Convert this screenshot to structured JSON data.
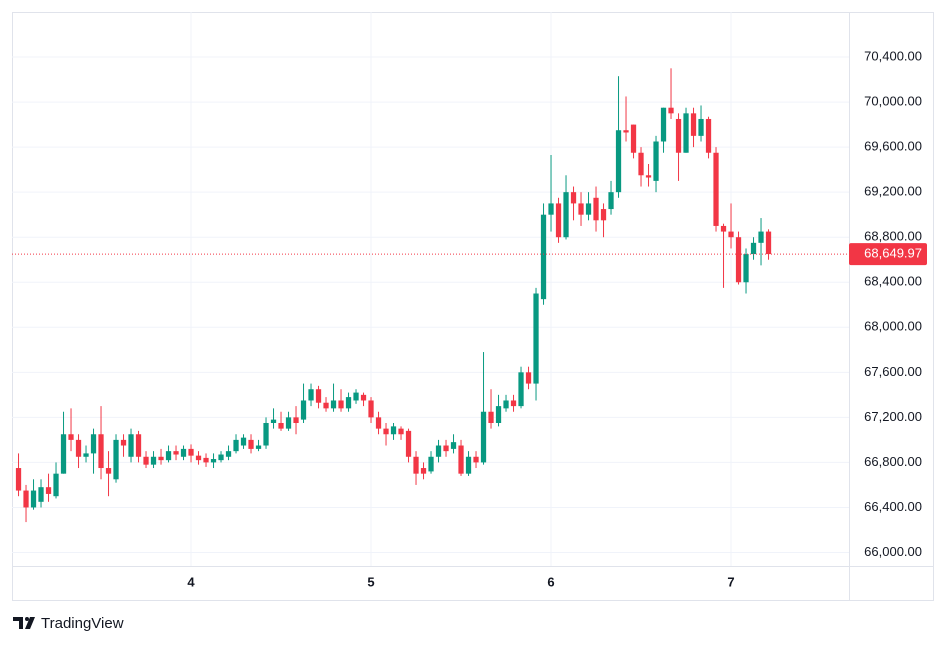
{
  "chart_data": {
    "type": "candlestick",
    "open": [
      66750,
      66550,
      66400,
      66450,
      66580,
      66500,
      66700,
      67050,
      67000,
      66850,
      66880,
      67050,
      66750,
      66650,
      67000,
      66850,
      67050,
      66850,
      66780,
      66850,
      66820,
      66900,
      66850,
      66920,
      66860,
      66840,
      66800,
      66820,
      66850,
      66900,
      66950,
      67000,
      66920,
      66950,
      67150,
      67150,
      67100,
      67200,
      67180,
      67350,
      67450,
      67330,
      67280,
      67350,
      67280,
      67350,
      67400,
      67350,
      67200,
      67100,
      67050,
      67100,
      67080,
      66850,
      66750,
      66720,
      66850,
      66950,
      66920,
      66950,
      66700,
      66850,
      66800,
      67250,
      67150,
      67280,
      67350,
      67300,
      67600,
      67500,
      68250,
      69000,
      69100,
      68800,
      69200,
      69100,
      69000,
      69150,
      69050,
      69050,
      69200,
      69750,
      69800,
      69550,
      69350,
      69300,
      69650,
      69950,
      69850,
      69550,
      69900,
      69700,
      69850,
      69550,
      68900,
      68850,
      68800,
      68400,
      68650,
      68750,
      68850
    ],
    "high": [
      66880,
      66600,
      66650,
      66650,
      66700,
      66800,
      67250,
      67280,
      67050,
      66950,
      67100,
      67300,
      66900,
      67050,
      67050,
      67100,
      67080,
      66900,
      66900,
      66920,
      66950,
      66950,
      66950,
      66960,
      66900,
      66880,
      66880,
      66900,
      66950,
      67050,
      67050,
      67050,
      67000,
      67200,
      67280,
      67250,
      67250,
      67300,
      67500,
      67500,
      67480,
      67380,
      67500,
      67450,
      67420,
      67450,
      67420,
      67380,
      67250,
      67150,
      67150,
      67120,
      67100,
      66900,
      66800,
      66900,
      67000,
      67000,
      67050,
      67000,
      66900,
      66900,
      67780,
      67450,
      67400,
      67400,
      67400,
      67650,
      67650,
      68350,
      69100,
      69530,
      69150,
      69350,
      69250,
      69200,
      69200,
      69250,
      69100,
      69300,
      70230,
      70050,
      69800,
      69600,
      69450,
      69700,
      69950,
      70300,
      69900,
      69950,
      69950,
      69970,
      69870,
      69600,
      68920,
      69100,
      68850,
      68700,
      68800,
      68970,
      68870
    ],
    "low": [
      66500,
      66270,
      66380,
      66400,
      66450,
      66480,
      66700,
      66900,
      66750,
      66800,
      66700,
      66650,
      66500,
      66620,
      66850,
      66800,
      66800,
      66750,
      66750,
      66780,
      66800,
      66820,
      66820,
      66800,
      66780,
      66760,
      66750,
      66800,
      66820,
      66880,
      66920,
      66880,
      66900,
      66920,
      67100,
      67080,
      67080,
      67050,
      67150,
      67300,
      67280,
      67250,
      67250,
      67250,
      67250,
      67320,
      67300,
      67150,
      67050,
      66950,
      67000,
      67000,
      66800,
      66600,
      66650,
      66700,
      66800,
      66850,
      66880,
      66680,
      66680,
      66750,
      66780,
      67100,
      67120,
      67250,
      67250,
      67280,
      67450,
      67350,
      68200,
      68850,
      68750,
      68780,
      68950,
      68900,
      68950,
      68850,
      68800,
      69000,
      69150,
      69650,
      69500,
      69250,
      69250,
      69200,
      69550,
      69850,
      69300,
      69550,
      69600,
      69650,
      69500,
      68850,
      68350,
      68700,
      68380,
      68300,
      68600,
      68550,
      68600
    ],
    "close": [
      66550,
      66400,
      66550,
      66580,
      66520,
      66700,
      67050,
      67000,
      66850,
      66880,
      67050,
      66750,
      66700,
      67000,
      66950,
      67050,
      66850,
      66780,
      66850,
      66820,
      66900,
      66870,
      66920,
      66860,
      66820,
      66800,
      66830,
      66870,
      66900,
      67000,
      67020,
      66920,
      66950,
      67150,
      67180,
      67100,
      67200,
      67150,
      67350,
      67450,
      67330,
      67280,
      67350,
      67280,
      67380,
      67420,
      67350,
      67200,
      67100,
      67050,
      67120,
      67050,
      66850,
      66700,
      66700,
      66850,
      66950,
      66900,
      66980,
      66700,
      66850,
      66800,
      67250,
      67150,
      67300,
      67350,
      67300,
      67600,
      67500,
      68300,
      69000,
      69100,
      68800,
      69200,
      69100,
      69000,
      69100,
      68950,
      68950,
      69200,
      69750,
      69730,
      69550,
      69350,
      69330,
      69650,
      69950,
      69900,
      69550,
      69900,
      69700,
      69850,
      69550,
      68900,
      68850,
      68800,
      68400,
      68650,
      68750,
      68850,
      68649.97
    ],
    "up_color": "#089981",
    "down_color": "#f23645",
    "xlim": [
      -0.87,
      110.73
    ],
    "xticks": [
      {
        "value": 23,
        "label": "4"
      },
      {
        "value": 47,
        "label": "5"
      },
      {
        "value": 71,
        "label": "6"
      },
      {
        "value": 95,
        "label": "7"
      }
    ],
    "ylim": [
      65880,
      70800
    ],
    "yticks": [
      {
        "value": 66000,
        "label": "66,000.00"
      },
      {
        "value": 66400,
        "label": "66,400.00"
      },
      {
        "value": 66800,
        "label": "66,800.00"
      },
      {
        "value": 67200,
        "label": "67,200.00"
      },
      {
        "value": 67600,
        "label": "67,600.00"
      },
      {
        "value": 68000,
        "label": "68,000.00"
      },
      {
        "value": 68400,
        "label": "68,400.00"
      },
      {
        "value": 68800,
        "label": "68,800.00"
      },
      {
        "value": 69200,
        "label": "69,200.00"
      },
      {
        "value": 69600,
        "label": "69,600.00"
      },
      {
        "value": 70000,
        "label": "70,000.00"
      },
      {
        "value": 70400,
        "label": "70,400.00"
      }
    ],
    "last_price": {
      "value": 68649.97,
      "label": "68,649.97"
    },
    "grid": true,
    "branding": "TradingView"
  }
}
